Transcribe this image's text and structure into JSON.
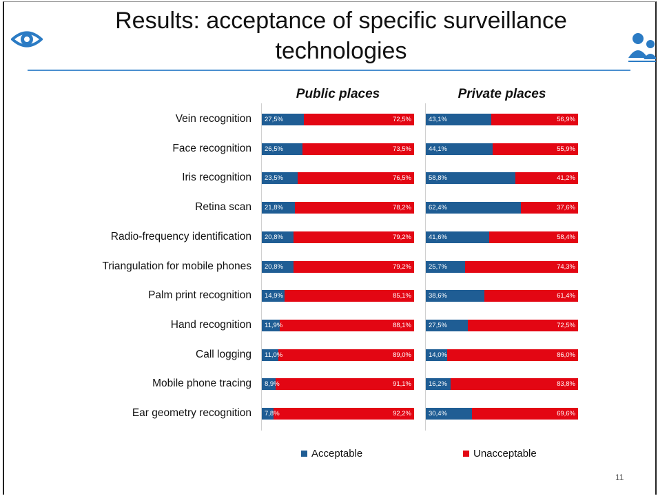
{
  "slide": {
    "title": "Results: acceptance of specific surveillance technologies",
    "page_number": "11",
    "icons": [
      "eye-icon",
      "people-icon"
    ]
  },
  "chart_data": {
    "type": "bar",
    "orientation": "horizontal-stacked-100",
    "categories": [
      "Vein recognition",
      "Face recognition",
      "Iris recognition",
      "Retina scan",
      "Radio-frequency identification",
      "Triangulation for mobile phones",
      "Palm print recognition",
      "Hand recognition",
      "Call logging",
      "Mobile phone tracing",
      "Ear geometry recognition"
    ],
    "panels": [
      {
        "title": "Public places",
        "series": [
          {
            "name": "Acceptable",
            "values": [
              27.5,
              26.5,
              23.5,
              21.8,
              20.8,
              20.8,
              14.9,
              11.9,
              11.0,
              8.9,
              7.8
            ],
            "labels": [
              "27,5%",
              "26,5%",
              "23,5%",
              "21,8%",
              "20,8%",
              "20,8%",
              "14,9%",
              "11,9%",
              "11,0%",
              "8,9%",
              "7,8%"
            ]
          },
          {
            "name": "Unacceptable",
            "values": [
              72.5,
              73.5,
              76.5,
              78.2,
              79.2,
              79.2,
              85.1,
              88.1,
              89.0,
              91.1,
              92.2
            ],
            "labels": [
              "72,5%",
              "73,5%",
              "76,5%",
              "78,2%",
              "79,2%",
              "79,2%",
              "85,1%",
              "88,1%",
              "89,0%",
              "91,1%",
              "92,2%"
            ]
          }
        ]
      },
      {
        "title": "Private places",
        "series": [
          {
            "name": "Acceptable",
            "values": [
              43.1,
              44.1,
              58.8,
              62.4,
              41.6,
              25.7,
              38.6,
              27.5,
              14.0,
              16.2,
              30.4
            ],
            "labels": [
              "43,1%",
              "44,1%",
              "58,8%",
              "62,4%",
              "41,6%",
              "25,7%",
              "38,6%",
              "27,5%",
              "14,0%",
              "16,2%",
              "30,4%"
            ]
          },
          {
            "name": "Unacceptable",
            "values": [
              56.9,
              55.9,
              41.2,
              37.6,
              58.4,
              74.3,
              61.4,
              72.5,
              86.0,
              83.8,
              69.6
            ],
            "labels": [
              "56,9%",
              "55,9%",
              "41,2%",
              "37,6%",
              "58,4%",
              "74,3%",
              "61,4%",
              "72,5%",
              "86,0%",
              "83,8%",
              "69,6%"
            ]
          }
        ]
      }
    ],
    "legend": {
      "placement": "bottom",
      "items": [
        {
          "name": "Acceptable",
          "color": "#1f5d94"
        },
        {
          "name": "Unacceptable",
          "color": "#e30613"
        }
      ]
    },
    "xlim": [
      0,
      100
    ]
  }
}
